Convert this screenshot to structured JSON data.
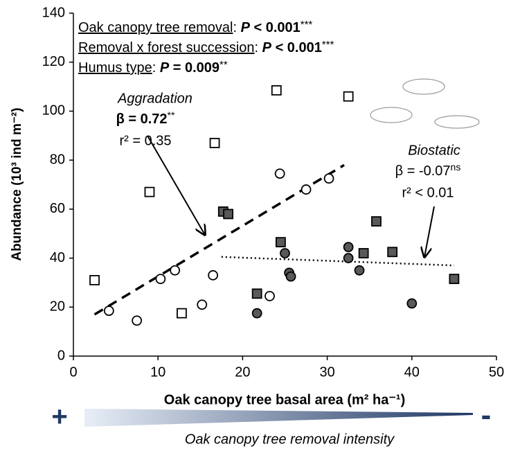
{
  "chart_data": {
    "type": "scatter",
    "x_label": "Oak canopy tree basal area (m² ha⁻¹)",
    "y_label": "Abundance (10³ ind m⁻²)",
    "xlim": [
      0,
      50
    ],
    "xticks": [
      0,
      10,
      20,
      30,
      40,
      50
    ],
    "ylim": [
      0,
      140
    ],
    "yticks": [
      0,
      20,
      40,
      60,
      80,
      100,
      120,
      140
    ],
    "grid": false,
    "series": [
      {
        "marker": "square",
        "color": "#ffffff",
        "x": [
          2.5,
          9,
          12.8,
          16.7,
          24,
          32.5
        ],
        "values": [
          31,
          67,
          17.5,
          87,
          108.5,
          106
        ]
      },
      {
        "marker": "circle",
        "color": "#ffffff",
        "x": [
          4.2,
          7.5,
          10.3,
          12,
          15.2,
          16.5,
          23.2,
          24.4,
          27.5,
          30.2
        ],
        "values": [
          18.5,
          14.5,
          31.5,
          35,
          21,
          33,
          24.5,
          74.5,
          68,
          72.5
        ]
      },
      {
        "marker": "square",
        "color": "#595959",
        "x": [
          17.7,
          18.3,
          21.7,
          24.5,
          34.3,
          35.8,
          37.7,
          45
        ],
        "values": [
          59,
          58,
          25.5,
          46.5,
          42,
          55,
          42.5,
          31.5
        ]
      },
      {
        "marker": "circle",
        "color": "#595959",
        "x": [
          21.7,
          25,
          25.5,
          25.7,
          32.5,
          32.5,
          33.8,
          40
        ],
        "values": [
          17.5,
          42,
          34,
          32.5,
          44.5,
          40,
          35,
          21.5
        ]
      }
    ],
    "trend_lines": [
      {
        "style": "dashed",
        "x": [
          2.5,
          32
        ],
        "values": [
          17,
          78
        ]
      },
      {
        "style": "dotted",
        "x": [
          17.5,
          45
        ],
        "values": [
          40.5,
          37
        ]
      }
    ],
    "statistics": [
      {
        "term": "Oak canopy tree removal",
        "sep": ": ",
        "p": "P",
        "test": " < 0.001",
        "stars": "***"
      },
      {
        "term": "Removal  x forest succession",
        "sep": ": ",
        "p": "P",
        "test": " < 0.001",
        "stars": "***"
      },
      {
        "term": "Humus type",
        "sep": ": ",
        "p": "P",
        "test": " = 0.009",
        "stars": "**"
      }
    ],
    "annotations": [
      {
        "title": "Aggradation",
        "beta": "β = 0.72",
        "significance": "**",
        "r2": "r² = 0.35"
      },
      {
        "title": "Biostatic",
        "beta": "β = -0.07",
        "significance": "ns",
        "r2": "r² < 0.01"
      }
    ],
    "gradient": {
      "left": "+",
      "right": "-",
      "label": "Oak canopy tree removal intensity"
    }
  }
}
